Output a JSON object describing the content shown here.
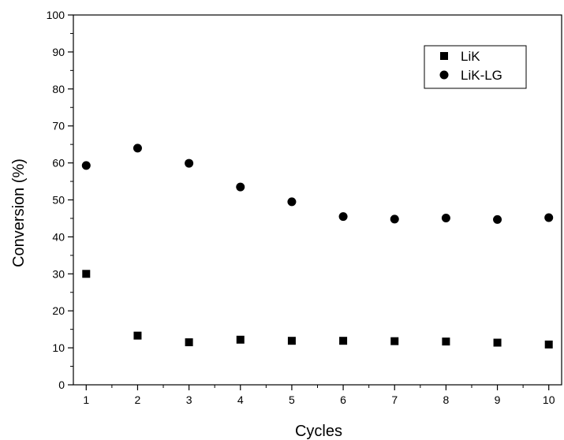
{
  "chart_data": {
    "type": "scatter",
    "title": "",
    "xlabel": "Cycles",
    "ylabel": "Conversion (%)",
    "xlim": [
      0.75,
      10.25
    ],
    "ylim": [
      0,
      100
    ],
    "x_ticks": [
      1,
      2,
      3,
      4,
      5,
      6,
      7,
      8,
      9,
      10
    ],
    "y_ticks": [
      0,
      10,
      20,
      30,
      40,
      50,
      60,
      70,
      80,
      90,
      100
    ],
    "grid": false,
    "legend_position": "top-right",
    "x": [
      1,
      2,
      3,
      4,
      5,
      6,
      7,
      8,
      9,
      10
    ],
    "series": [
      {
        "name": "LiK",
        "marker": "square",
        "color": "#000000",
        "values": [
          30.0,
          13.3,
          11.5,
          12.2,
          11.9,
          11.9,
          11.8,
          11.7,
          11.4,
          10.9
        ]
      },
      {
        "name": "LiK-LG",
        "marker": "circle",
        "color": "#000000",
        "values": [
          59.3,
          64.0,
          59.9,
          53.5,
          49.5,
          45.5,
          44.8,
          45.1,
          44.7,
          45.2
        ]
      }
    ]
  }
}
